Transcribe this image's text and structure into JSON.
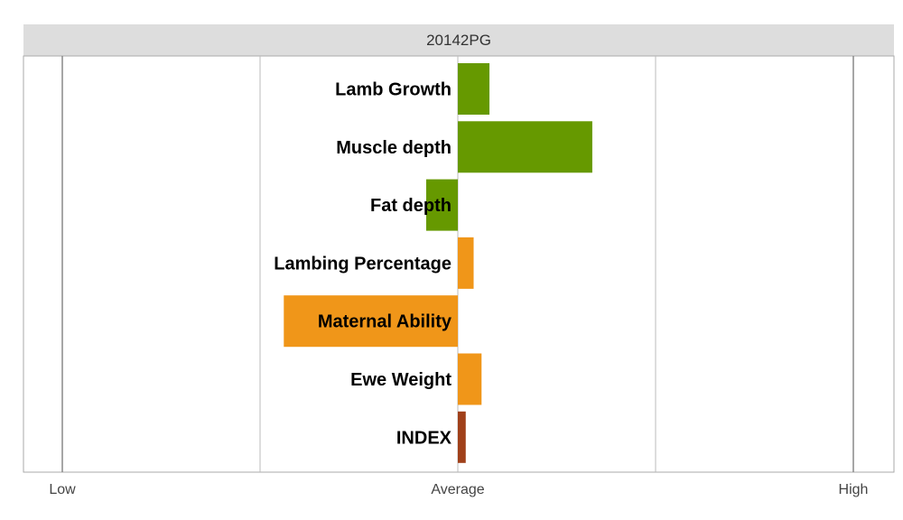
{
  "chart_data": {
    "type": "bar",
    "orientation": "horizontal",
    "title": "20142PG",
    "categories": [
      "Lamb Growth",
      "Muscle depth",
      "Fat depth",
      "Lambing Percentage",
      "Maternal Ability",
      "Ewe Weight",
      "INDEX"
    ],
    "values": [
      0.08,
      0.34,
      -0.08,
      0.04,
      -0.44,
      0.06,
      0.02
    ],
    "bar_colors": [
      "#669900",
      "#669900",
      "#669900",
      "#F09619",
      "#F09619",
      "#F09619",
      "#A0401A"
    ],
    "xlim": [
      -1,
      1
    ],
    "x_tick_values": [
      -1,
      -0.5,
      0,
      0.5,
      1
    ],
    "x_tick_labels": [
      "Low",
      "Average",
      "High"
    ],
    "x_tick_label_positions": [
      -1,
      0,
      1
    ],
    "xlabel": "",
    "ylabel": "",
    "grid": true
  }
}
